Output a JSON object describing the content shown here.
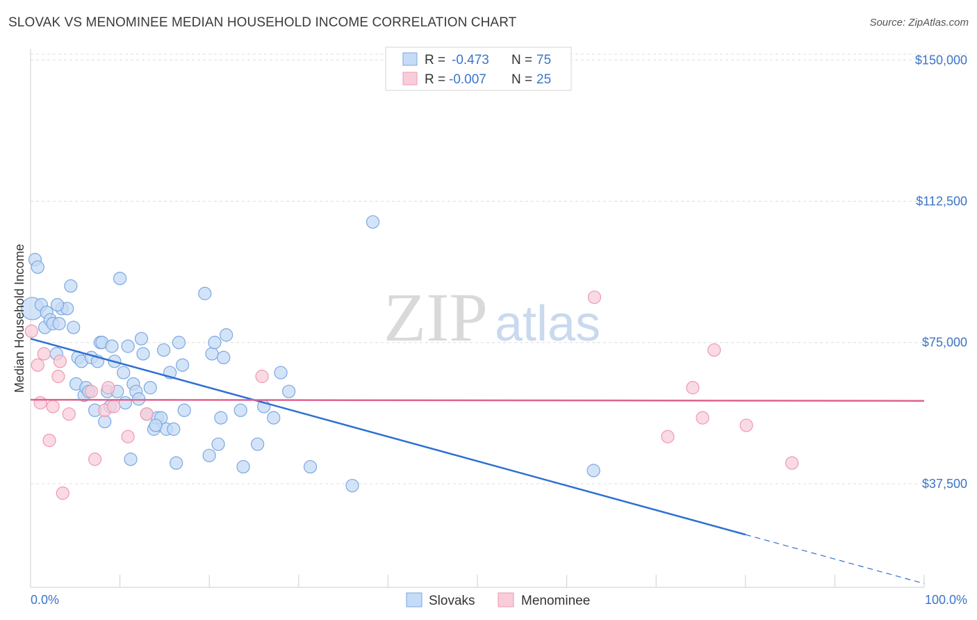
{
  "title": "SLOVAK VS MENOMINEE MEDIAN HOUSEHOLD INCOME CORRELATION CHART",
  "source": "Source: ZipAtlas.com",
  "watermark": {
    "zip": "ZIP",
    "atlas": "atlas"
  },
  "chart_data": {
    "type": "scatter",
    "ylabel": "Median Household Income",
    "xlim": [
      0,
      100
    ],
    "ylim": [
      10000,
      153000
    ],
    "x_tick_labels": {
      "left": "0.0%",
      "right": "100.0%"
    },
    "y_ticks": [
      {
        "value": 150000,
        "label": "$150,000"
      },
      {
        "value": 112500,
        "label": "$112,500"
      },
      {
        "value": 75000,
        "label": "$75,000"
      },
      {
        "value": 37500,
        "label": "$37,500"
      }
    ],
    "grid": "horizontal dashed",
    "legend_position": "top-center",
    "legend_stats": [
      {
        "r_label": "R =",
        "r_value": "-0.473",
        "n_label": "N =",
        "n_value": "75"
      },
      {
        "r_label": "R =",
        "r_value": "-0.007",
        "n_label": "N =",
        "n_value": "25"
      }
    ],
    "bottom_legend": [
      "Slovaks",
      "Menominee"
    ],
    "series": [
      {
        "name": "Slovaks",
        "color": "#7aa7e0",
        "fill": "#c6dbf5",
        "trend": {
          "x1": 0,
          "y1": 76000,
          "x2": 80,
          "y2": 24000,
          "dash_to": 100,
          "dash_y": 11000
        },
        "points": [
          [
            0.2,
            84000
          ],
          [
            0.5,
            97000
          ],
          [
            0.8,
            95000
          ],
          [
            1.2,
            85000
          ],
          [
            1.6,
            79000
          ],
          [
            1.8,
            83000
          ],
          [
            2.2,
            81000
          ],
          [
            2.5,
            80000
          ],
          [
            2.9,
            72000
          ],
          [
            3.2,
            80000
          ],
          [
            3.5,
            84000
          ],
          [
            4.1,
            84000
          ],
          [
            4.5,
            90000
          ],
          [
            4.8,
            79000
          ],
          [
            5.1,
            64000
          ],
          [
            5.3,
            71000
          ],
          [
            5.7,
            70000
          ],
          [
            6.0,
            61000
          ],
          [
            6.2,
            63000
          ],
          [
            6.5,
            62000
          ],
          [
            6.8,
            71000
          ],
          [
            7.2,
            57000
          ],
          [
            7.5,
            70000
          ],
          [
            7.8,
            75000
          ],
          [
            8.0,
            75000
          ],
          [
            8.3,
            54000
          ],
          [
            8.6,
            62000
          ],
          [
            8.9,
            58000
          ],
          [
            9.1,
            74000
          ],
          [
            9.4,
            70000
          ],
          [
            9.7,
            62000
          ],
          [
            10.0,
            92000
          ],
          [
            10.4,
            67000
          ],
          [
            10.6,
            59000
          ],
          [
            10.9,
            74000
          ],
          [
            11.2,
            44000
          ],
          [
            11.5,
            64000
          ],
          [
            11.8,
            62000
          ],
          [
            12.1,
            60000
          ],
          [
            12.4,
            76000
          ],
          [
            12.6,
            72000
          ],
          [
            13.0,
            56000
          ],
          [
            13.4,
            63000
          ],
          [
            13.8,
            52000
          ],
          [
            14.2,
            55000
          ],
          [
            14.6,
            55000
          ],
          [
            14.9,
            73000
          ],
          [
            15.2,
            52000
          ],
          [
            15.6,
            67000
          ],
          [
            16.0,
            52000
          ],
          [
            16.3,
            43000
          ],
          [
            16.6,
            75000
          ],
          [
            17.0,
            69000
          ],
          [
            17.2,
            57000
          ],
          [
            19.5,
            88000
          ],
          [
            20.0,
            45000
          ],
          [
            20.3,
            72000
          ],
          [
            20.6,
            75000
          ],
          [
            21.0,
            48000
          ],
          [
            21.3,
            55000
          ],
          [
            21.6,
            71000
          ],
          [
            21.9,
            77000
          ],
          [
            23.8,
            42000
          ],
          [
            23.5,
            57000
          ],
          [
            25.4,
            48000
          ],
          [
            26.1,
            58000
          ],
          [
            27.2,
            55000
          ],
          [
            28.0,
            67000
          ],
          [
            28.9,
            62000
          ],
          [
            31.3,
            42000
          ],
          [
            36.0,
            37000
          ],
          [
            38.3,
            107000
          ],
          [
            63.0,
            41000
          ],
          [
            3.0,
            85000
          ],
          [
            14.0,
            53000
          ]
        ]
      },
      {
        "name": "Menominee",
        "color": "#ee99b4",
        "fill": "#f8cdd9",
        "trend": {
          "x1": 0,
          "y1": 59800,
          "x2": 100,
          "y2": 59500
        },
        "points": [
          [
            0.1,
            78000
          ],
          [
            0.8,
            69000
          ],
          [
            1.1,
            59000
          ],
          [
            1.5,
            72000
          ],
          [
            2.1,
            49000
          ],
          [
            2.5,
            58000
          ],
          [
            3.1,
            66000
          ],
          [
            3.3,
            70000
          ],
          [
            3.6,
            35000
          ],
          [
            4.3,
            56000
          ],
          [
            6.8,
            62000
          ],
          [
            7.2,
            44000
          ],
          [
            8.3,
            57000
          ],
          [
            8.7,
            63000
          ],
          [
            9.3,
            58000
          ],
          [
            10.9,
            50000
          ],
          [
            13.0,
            56000
          ],
          [
            25.9,
            66000
          ],
          [
            63.1,
            87000
          ],
          [
            71.3,
            50000
          ],
          [
            74.1,
            63000
          ],
          [
            75.2,
            55000
          ],
          [
            76.5,
            73000
          ],
          [
            80.1,
            53000
          ],
          [
            85.2,
            43000
          ]
        ]
      }
    ]
  }
}
